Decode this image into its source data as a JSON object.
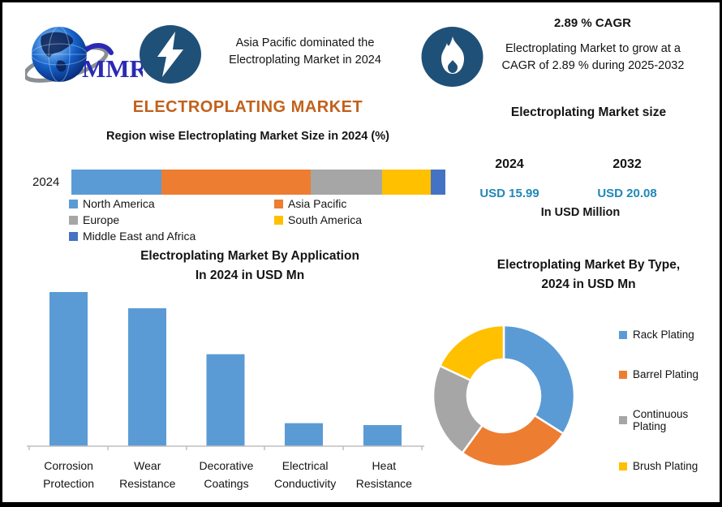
{
  "header": {
    "logo_text": "MMR",
    "callout_left_lines": [
      "Asia Pacific dominated the",
      "Electroplating Market in 2024"
    ],
    "cagr_title": "2.89 % CAGR",
    "cagr_text_lines": [
      "Electroplating Market to grow at a",
      "CAGR of 2.89 % during 2025-2032"
    ]
  },
  "main_title": "ELECTROPLATING MARKET",
  "colors": {
    "accent_orange_title": "#C2611B",
    "badge_blue": "#1F5078",
    "usd_teal": "#2187B8",
    "axis_gray": "#BFBFBF",
    "logo_blue": "#2A2AB5"
  },
  "market_size": {
    "heading": "Electroplating Market size",
    "periods": [
      {
        "year": "2024",
        "value": "USD 15.99"
      },
      {
        "year": "2032",
        "value": "USD 20.08"
      }
    ],
    "unit_note": "In USD Million"
  },
  "chart_data": [
    {
      "type": "bar",
      "variant": "stacked-horizontal",
      "title": "Region wise Electroplating Market Size in 2024 (%)",
      "categories": [
        "2024"
      ],
      "unit": "%",
      "legend_position": "bottom",
      "series": [
        {
          "name": "North America",
          "color": "#5B9BD5",
          "values": [
            24
          ]
        },
        {
          "name": "Asia Pacific",
          "color": "#ED7D31",
          "values": [
            40
          ]
        },
        {
          "name": "Europe",
          "color": "#A6A6A6",
          "values": [
            19
          ]
        },
        {
          "name": "South America",
          "color": "#FFC000",
          "values": [
            13
          ]
        },
        {
          "name": "Middle East and Africa",
          "color": "#4472C4",
          "values": [
            4
          ]
        }
      ]
    },
    {
      "type": "bar",
      "title": "Electroplating Market By Application In 2024 in USD Mn",
      "title_lines": [
        "Electroplating Market By Application",
        "In 2024 in USD Mn"
      ],
      "categories": [
        "Corrosion Protection",
        "Wear Resistance",
        "Decorative Coatings",
        "Electrical Conductivity",
        "Heat Resistance"
      ],
      "values": [
        5.7,
        5.1,
        3.4,
        0.85,
        0.78
      ],
      "bar_color": "#5B9BD5",
      "ylabel": "",
      "xlabel": "",
      "ylim": [
        0,
        6
      ],
      "gridlines": false,
      "y_axis_shown": false
    },
    {
      "type": "pie",
      "variant": "donut",
      "title": "Electroplating Market By Type, 2024 in USD Mn",
      "title_lines": [
        "Electroplating Market By Type,",
        "2024 in USD Mn"
      ],
      "labels": [
        "Rack Plating",
        "Barrel Plating",
        "Continuous Plating",
        "Brush Plating"
      ],
      "values": [
        34,
        26,
        22,
        18
      ],
      "unit": "%",
      "colors": [
        "#5B9BD5",
        "#ED7D31",
        "#A6A6A6",
        "#FFC000"
      ],
      "legend_position": "right"
    }
  ]
}
